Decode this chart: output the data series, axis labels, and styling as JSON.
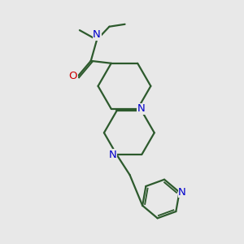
{
  "bg_color": "#e8e8e8",
  "bond_color": "#2d5a2d",
  "N_color": "#0000cc",
  "O_color": "#cc0000",
  "line_width": 1.6,
  "font_size": 9.5,
  "fig_size": [
    3.0,
    3.0
  ],
  "dpi": 100,
  "xlim": [
    0,
    10
  ],
  "ylim": [
    0,
    10
  ]
}
